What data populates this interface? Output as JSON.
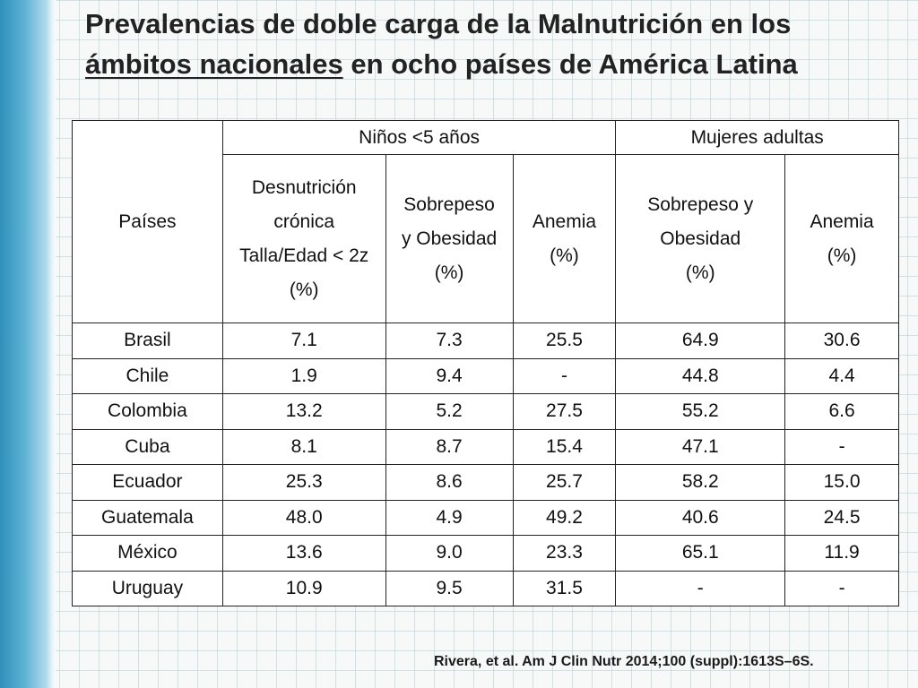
{
  "slide": {
    "title_line1": "Prevalencias de doble carga de la Malnutrición en los",
    "title_line2_underlined": "ámbitos nacionales",
    "title_line2_rest": " en ocho países de América Latina",
    "citation": "Rivera, et al. Am J Clin Nutr 2014;100 (suppl):1613S–6S."
  },
  "table": {
    "countries_header": "Países",
    "group_children": "Niños <5 años",
    "group_women": "Mujeres adultas",
    "children_columns": [
      [
        "Desnutrición",
        "crónica",
        "Talla/Edad < 2z",
        "(%)"
      ],
      [
        "Sobrepeso",
        "y Obesidad",
        "(%)"
      ],
      [
        "Anemia",
        "(%)"
      ]
    ],
    "women_columns": [
      [
        "Sobrepeso y",
        "Obesidad",
        "(%)"
      ],
      [
        "Anemia",
        "(%)"
      ]
    ],
    "rows": [
      [
        "Brasil",
        "7.1",
        "7.3",
        "25.5",
        "64.9",
        "30.6"
      ],
      [
        "Chile",
        "1.9",
        "9.4",
        "-",
        "44.8",
        "4.4"
      ],
      [
        "Colombia",
        "13.2",
        "5.2",
        "27.5",
        "55.2",
        "6.6"
      ],
      [
        "Cuba",
        "8.1",
        "8.7",
        "15.4",
        "47.1",
        "-"
      ],
      [
        "Ecuador",
        "25.3",
        "8.6",
        "25.7",
        "58.2",
        "15.0"
      ],
      [
        "Guatemala",
        "48.0",
        "4.9",
        "49.2",
        "40.6",
        "24.5"
      ],
      [
        "México",
        "13.6",
        "9.0",
        "23.3",
        "65.1",
        "11.9"
      ],
      [
        "Uruguay",
        "10.9",
        "9.5",
        "31.5",
        "-",
        "-"
      ]
    ]
  }
}
